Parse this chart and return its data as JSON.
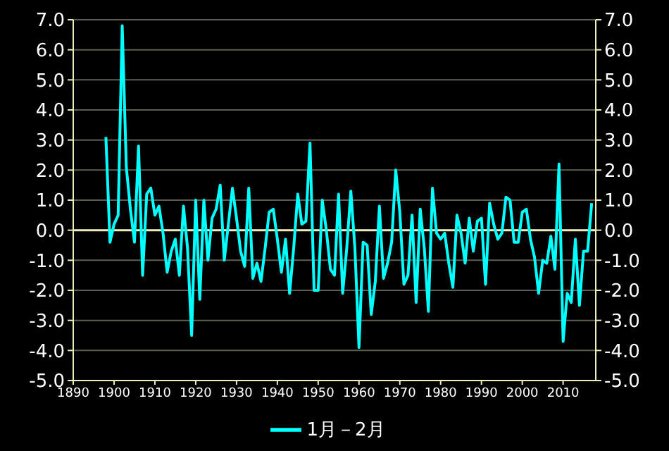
{
  "chart_data": {
    "type": "line",
    "x": [
      1898,
      1899,
      1900,
      1901,
      1902,
      1903,
      1904,
      1905,
      1906,
      1907,
      1908,
      1909,
      1910,
      1911,
      1912,
      1913,
      1914,
      1915,
      1916,
      1917,
      1918,
      1919,
      1920,
      1921,
      1922,
      1923,
      1924,
      1925,
      1926,
      1927,
      1928,
      1929,
      1930,
      1931,
      1932,
      1933,
      1934,
      1935,
      1936,
      1937,
      1938,
      1939,
      1940,
      1941,
      1942,
      1943,
      1944,
      1945,
      1946,
      1947,
      1948,
      1949,
      1950,
      1951,
      1952,
      1953,
      1954,
      1955,
      1956,
      1957,
      1958,
      1959,
      1960,
      1961,
      1962,
      1963,
      1964,
      1965,
      1966,
      1967,
      1968,
      1969,
      1970,
      1971,
      1972,
      1973,
      1974,
      1975,
      1976,
      1977,
      1978,
      1979,
      1980,
      1981,
      1982,
      1983,
      1984,
      1985,
      1986,
      1987,
      1988,
      1989,
      1990,
      1991,
      1992,
      1993,
      1994,
      1995,
      1996,
      1997,
      1998,
      1999,
      2000,
      2001,
      2002,
      2003,
      2004,
      2005,
      2006,
      2007,
      2008,
      2009,
      2010,
      2011,
      2012,
      2013,
      2014,
      2015,
      2016,
      2017
    ],
    "series": [
      {
        "name": "1月－2月",
        "color": "#00ffff",
        "values": [
          3.1,
          -0.4,
          0.2,
          0.5,
          6.8,
          2.1,
          0.7,
          -0.4,
          2.8,
          -1.5,
          1.2,
          1.4,
          0.5,
          0.8,
          -0.1,
          -1.4,
          -0.7,
          -0.3,
          -1.5,
          0.8,
          -0.6,
          -3.5,
          1.0,
          -2.3,
          1.0,
          -1.0,
          0.4,
          0.7,
          1.5,
          -1.0,
          0.2,
          1.4,
          0.4,
          -0.7,
          -1.2,
          1.4,
          -1.6,
          -1.1,
          -1.7,
          -0.6,
          0.6,
          0.7,
          -0.3,
          -1.4,
          -0.3,
          -2.1,
          -0.6,
          1.2,
          0.2,
          0.3,
          2.9,
          -2.0,
          -2.0,
          1.0,
          0.0,
          -1.3,
          -1.5,
          1.2,
          -2.1,
          -0.6,
          1.3,
          -0.6,
          -3.9,
          -0.4,
          -0.5,
          -2.8,
          -1.7,
          0.8,
          -1.6,
          -1.1,
          -0.4,
          2.0,
          0.6,
          -1.8,
          -1.5,
          0.5,
          -2.4,
          0.7,
          -0.6,
          -2.7,
          1.4,
          -0.1,
          -0.3,
          -0.1,
          -1.1,
          -1.9,
          0.5,
          -0.1,
          -1.1,
          0.4,
          -0.7,
          0.3,
          0.4,
          -1.8,
          0.9,
          0.2,
          -0.3,
          -0.1,
          1.1,
          1.0,
          -0.4,
          -0.4,
          0.6,
          0.7,
          -0.3,
          -0.9,
          -2.1,
          -1.0,
          -1.1,
          -0.2,
          -1.3,
          2.2,
          -3.7,
          -2.1,
          -2.4,
          -0.3,
          -2.5,
          -0.7,
          -0.7,
          0.9
        ]
      }
    ],
    "xlim": [
      1890,
      2018
    ],
    "xticks": [
      1890,
      1900,
      1910,
      1920,
      1930,
      1940,
      1950,
      1960,
      1970,
      1980,
      1990,
      2000,
      2010
    ],
    "ylim": [
      -5,
      7
    ],
    "yticks": [
      {
        "value": -5,
        "label": "-5.0"
      },
      {
        "value": -4,
        "label": "-4.0"
      },
      {
        "value": -3,
        "label": "-3.0"
      },
      {
        "value": -2,
        "label": "-2.0"
      },
      {
        "value": -1,
        "label": "-1.0"
      },
      {
        "value": 0,
        "label": "0.0"
      },
      {
        "value": 1,
        "label": "1.0"
      },
      {
        "value": 2,
        "label": "2.0"
      },
      {
        "value": 3,
        "label": "3.0"
      },
      {
        "value": 4,
        "label": "4.0"
      },
      {
        "value": 5,
        "label": "5.0"
      },
      {
        "value": 6,
        "label": "6.0"
      },
      {
        "value": 7,
        "label": "7.0"
      }
    ],
    "y2lim": [
      -5,
      7
    ],
    "y2ticks": [
      {
        "value": -5,
        "label": "-5.0"
      },
      {
        "value": -4,
        "label": "-4.0"
      },
      {
        "value": -3,
        "label": "-3.0"
      },
      {
        "value": -2,
        "label": "-2.0"
      },
      {
        "value": -1,
        "label": "-1.0"
      },
      {
        "value": 0,
        "label": "0.0"
      },
      {
        "value": 1,
        "label": "1.0"
      },
      {
        "value": 2,
        "label": "2.0"
      },
      {
        "value": 3,
        "label": "3.0"
      },
      {
        "value": 4,
        "label": "4.0"
      },
      {
        "value": 5,
        "label": "5.0"
      },
      {
        "value": 6,
        "label": "6.0"
      },
      {
        "value": 7,
        "label": "7.0"
      }
    ],
    "ref_lines": [
      {
        "axis": "y",
        "value": 0,
        "color": "#eeeebb"
      }
    ],
    "grid": "y",
    "legend": "bottom",
    "marker": "none",
    "line_style": "solid"
  }
}
